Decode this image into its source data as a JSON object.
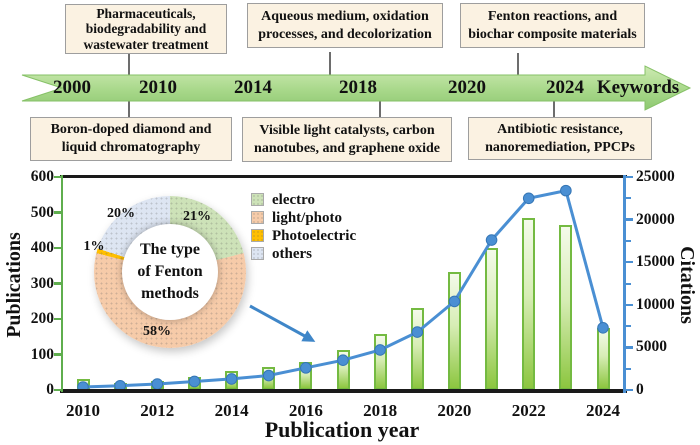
{
  "figure": {
    "background": "#ffffff",
    "text_color": "#111111"
  },
  "timeline": {
    "arrow_label": "Keywords",
    "banner_color": "#a8d88a",
    "box_fill": "#fbf2e2",
    "box_border": "#9e9e9e",
    "years": [
      "2000",
      "2010",
      "2014",
      "2018",
      "2020",
      "2024"
    ],
    "boxes_top": [
      {
        "lines": [
          "Pharmaceuticals,",
          "biodegradability and",
          "wastewater treatment"
        ]
      },
      {
        "lines": [
          "Aqueous medium, oxidation",
          "processes, and decolorization"
        ]
      },
      {
        "lines": [
          "Fenton reactions, and",
          "biochar composite materials"
        ]
      }
    ],
    "boxes_bottom": [
      {
        "lines": [
          "Boron-doped diamond and",
          "liquid chromatography"
        ]
      },
      {
        "lines": [
          "Visible light catalysts, carbon",
          "nanotubes, and graphene oxide"
        ]
      },
      {
        "lines": [
          "Antibiotic resistance,",
          "nanoremediation, PPCPs"
        ]
      }
    ]
  },
  "chart": {
    "left_axis": {
      "label": "Publications",
      "ticks": [
        0,
        100,
        200,
        300,
        400,
        500,
        600
      ],
      "color": "#5fae4e"
    },
    "right_axis": {
      "label": "Citations",
      "ticks": [
        0,
        5000,
        10000,
        15000,
        20000,
        25000
      ],
      "color": "#4a8fd3"
    },
    "x_axis": {
      "label": "Publication year",
      "tick_labels": [
        "2010",
        "2012",
        "2014",
        "2016",
        "2018",
        "2020",
        "2022",
        "2024"
      ]
    }
  },
  "chart_data": [
    {
      "type": "bar",
      "name": "publications-by-year",
      "categories": [
        2010,
        2011,
        2012,
        2013,
        2014,
        2015,
        2016,
        2017,
        2018,
        2019,
        2020,
        2021,
        2022,
        2023,
        2024
      ],
      "values": [
        30,
        20,
        26,
        36,
        54,
        66,
        78,
        114,
        158,
        230,
        333,
        400,
        484,
        464,
        175
      ],
      "title": "",
      "xlabel": "Publication year",
      "ylabel": "Publications",
      "ylim": [
        0,
        600
      ],
      "color": "#8cc63f"
    },
    {
      "type": "line",
      "name": "citations-by-year",
      "x": [
        2010,
        2011,
        2012,
        2013,
        2014,
        2015,
        2016,
        2017,
        2018,
        2019,
        2020,
        2021,
        2022,
        2023,
        2024
      ],
      "values": [
        350,
        500,
        700,
        1000,
        1300,
        1700,
        2600,
        3500,
        4700,
        6800,
        10400,
        17600,
        22500,
        23400,
        7300
      ],
      "title": "",
      "xlabel": "Publication year",
      "ylabel": "Citations",
      "ylim": [
        0,
        25000
      ],
      "color": "#4a8fd3"
    },
    {
      "type": "pie",
      "name": "fenton-method-types",
      "labels": [
        "electro",
        "light/photo",
        "Photoelectric",
        "others"
      ],
      "values": [
        21,
        58,
        1,
        20
      ],
      "pct_labels": [
        "21%",
        "58%",
        "1%",
        "20%"
      ],
      "colors": [
        "#cde2b8",
        "#f6cba9",
        "#ffbf00",
        "#dde5f2"
      ],
      "center_lines": [
        "The type",
        "of Fenton",
        "methods"
      ]
    }
  ]
}
